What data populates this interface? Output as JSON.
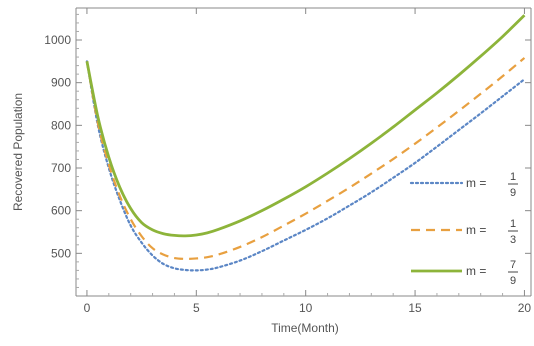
{
  "chart_data": {
    "type": "line",
    "title": "",
    "xlabel": "Time(Month)",
    "ylabel": "Recovered Population",
    "xlim": [
      -0.5,
      20.3
    ],
    "ylim": [
      400,
      1075
    ],
    "xticks": [
      0,
      5,
      10,
      15,
      20
    ],
    "yticks": [
      500,
      600,
      700,
      800,
      900,
      1000
    ],
    "grid": false,
    "legend_position": "right",
    "series": [
      {
        "name": "m = 1/9",
        "legend": {
          "prefix": "m =",
          "num": "1",
          "den": "9"
        },
        "color": "#5b86c5",
        "style": "dotted",
        "x": [
          0,
          0.5,
          1,
          1.5,
          2,
          2.5,
          3,
          3.5,
          4,
          4.5,
          5,
          5.5,
          6,
          7,
          8,
          9,
          10,
          11,
          12,
          13,
          14,
          15,
          16,
          17,
          18,
          19,
          20
        ],
        "y": [
          950,
          800,
          700,
          625,
          565,
          525,
          495,
          475,
          465,
          461,
          460,
          462,
          467,
          483,
          505,
          530,
          555,
          582,
          612,
          643,
          677,
          712,
          750,
          789,
          828,
          868,
          908
        ]
      },
      {
        "name": "m = 1/3",
        "legend": {
          "prefix": "m =",
          "num": "1",
          "den": "3"
        },
        "color": "#e8a040",
        "style": "dashed",
        "x": [
          0,
          0.5,
          1,
          1.5,
          2,
          2.5,
          3,
          3.5,
          4,
          4.5,
          5,
          5.5,
          6,
          7,
          8,
          9,
          10,
          11,
          12,
          13,
          14,
          15,
          16,
          17,
          18,
          19,
          20
        ],
        "y": [
          950,
          805,
          708,
          635,
          580,
          540,
          512,
          497,
          489,
          487,
          488,
          491,
          497,
          515,
          538,
          565,
          593,
          623,
          654,
          687,
          721,
          757,
          795,
          834,
          874,
          915,
          958
        ]
      },
      {
        "name": "m = 7/9",
        "legend": {
          "prefix": "m =",
          "num": "7",
          "den": "9"
        },
        "color": "#8db43a",
        "style": "solid",
        "x": [
          0,
          0.5,
          1,
          1.5,
          2,
          2.5,
          3,
          3.5,
          4,
          4.5,
          5,
          5.5,
          6,
          7,
          8,
          9,
          10,
          11,
          12,
          13,
          14,
          15,
          16,
          17,
          18,
          19,
          20
        ],
        "y": [
          950,
          820,
          725,
          655,
          605,
          572,
          555,
          546,
          542,
          541,
          543,
          548,
          556,
          576,
          600,
          627,
          656,
          688,
          722,
          758,
          796,
          836,
          876,
          918,
          962,
          1008,
          1058
        ]
      }
    ]
  }
}
